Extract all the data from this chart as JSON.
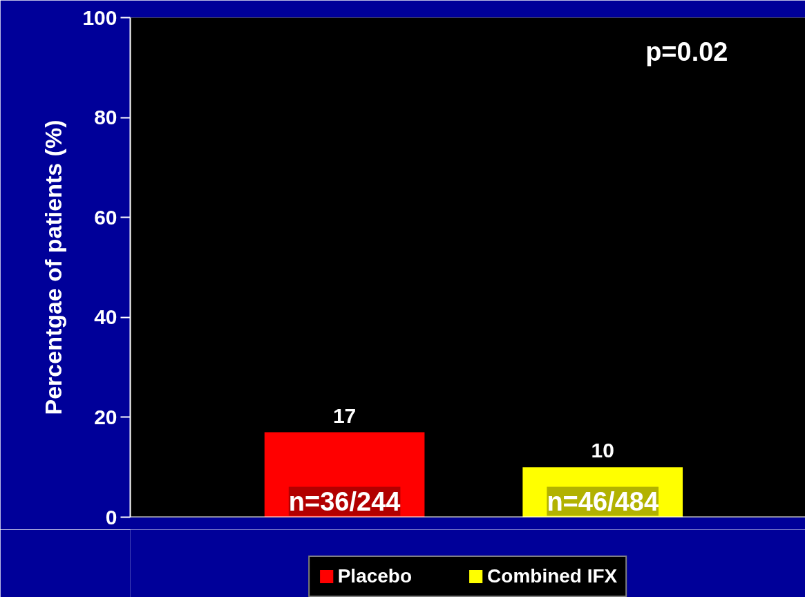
{
  "chart_data": {
    "type": "bar",
    "ylabel": "Percentgae of patients (%)",
    "categories": [
      null,
      null
    ],
    "series": [
      {
        "name": "Placebo",
        "color": "#ff0000",
        "values": [
          17,
          null
        ]
      },
      {
        "name": "Combined IFX",
        "color": "#ffff00",
        "values": [
          null,
          10
        ]
      }
    ],
    "ylim": [
      0,
      100
    ],
    "yticks": [
      0,
      20,
      40,
      60,
      80,
      100
    ],
    "grid": false,
    "legend": "bottom",
    "data_labels": true,
    "annotations": [
      "p=0.02",
      "n=36/244",
      "n=46/484"
    ]
  }
}
